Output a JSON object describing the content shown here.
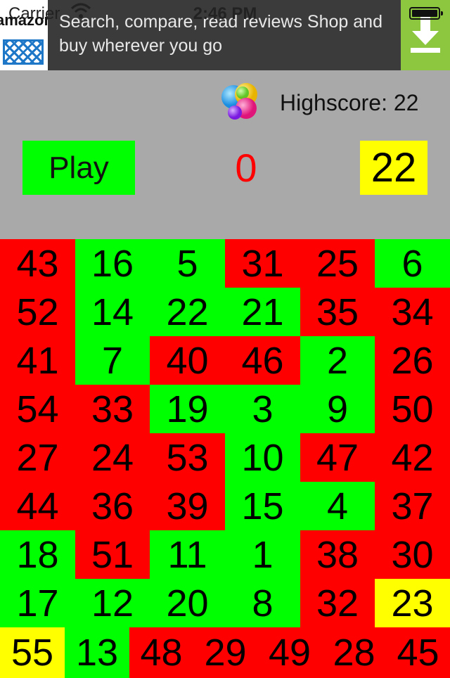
{
  "status_bar": {
    "carrier": "Carrier",
    "time": "2:46 PM"
  },
  "ad": {
    "logo_text": "amazon",
    "text": "Search, compare, read reviews Shop and buy wherever you go",
    "download_icon": "download-arrow-icon"
  },
  "header": {
    "game_center_icon": "game-center-bubbles-icon",
    "highscore": "Highscore: 22",
    "play_label": "Play",
    "score": "0",
    "target": "22"
  },
  "grid": {
    "rows": [
      [
        {
          "v": "43",
          "c": "red"
        },
        {
          "v": "16",
          "c": "green"
        },
        {
          "v": "5",
          "c": "green"
        },
        {
          "v": "31",
          "c": "red"
        },
        {
          "v": "25",
          "c": "red"
        },
        {
          "v": "6",
          "c": "green"
        }
      ],
      [
        {
          "v": "52",
          "c": "red"
        },
        {
          "v": "14",
          "c": "green"
        },
        {
          "v": "22",
          "c": "green"
        },
        {
          "v": "21",
          "c": "green"
        },
        {
          "v": "35",
          "c": "red"
        },
        {
          "v": "34",
          "c": "red"
        }
      ],
      [
        {
          "v": "41",
          "c": "red"
        },
        {
          "v": "7",
          "c": "green"
        },
        {
          "v": "40",
          "c": "red"
        },
        {
          "v": "46",
          "c": "red"
        },
        {
          "v": "2",
          "c": "green"
        },
        {
          "v": "26",
          "c": "red"
        }
      ],
      [
        {
          "v": "54",
          "c": "red"
        },
        {
          "v": "33",
          "c": "red"
        },
        {
          "v": "19",
          "c": "green"
        },
        {
          "v": "3",
          "c": "green"
        },
        {
          "v": "9",
          "c": "green"
        },
        {
          "v": "50",
          "c": "red"
        }
      ],
      [
        {
          "v": "27",
          "c": "red"
        },
        {
          "v": "24",
          "c": "red"
        },
        {
          "v": "53",
          "c": "red"
        },
        {
          "v": "10",
          "c": "green"
        },
        {
          "v": "47",
          "c": "red"
        },
        {
          "v": "42",
          "c": "red"
        }
      ],
      [
        {
          "v": "44",
          "c": "red"
        },
        {
          "v": "36",
          "c": "red"
        },
        {
          "v": "39",
          "c": "red"
        },
        {
          "v": "15",
          "c": "green"
        },
        {
          "v": "4",
          "c": "green"
        },
        {
          "v": "37",
          "c": "red"
        }
      ],
      [
        {
          "v": "18",
          "c": "green"
        },
        {
          "v": "51",
          "c": "red"
        },
        {
          "v": "11",
          "c": "green"
        },
        {
          "v": "1",
          "c": "green"
        },
        {
          "v": "38",
          "c": "red"
        },
        {
          "v": "30",
          "c": "red"
        }
      ],
      [
        {
          "v": "17",
          "c": "green"
        },
        {
          "v": "12",
          "c": "green"
        },
        {
          "v": "20",
          "c": "green"
        },
        {
          "v": "8",
          "c": "green"
        },
        {
          "v": "32",
          "c": "red"
        },
        {
          "v": "23",
          "c": "yellow"
        }
      ],
      [
        {
          "v": "55",
          "c": "yellow"
        },
        {
          "v": "13",
          "c": "green"
        },
        {
          "v": "48",
          "c": "red"
        },
        {
          "v": "29",
          "c": "red"
        },
        {
          "v": "49",
          "c": "red"
        },
        {
          "v": "28",
          "c": "red"
        },
        {
          "v": "45",
          "c": "red"
        }
      ]
    ]
  },
  "colors": {
    "red": "#ff0000",
    "green": "#00ff00",
    "yellow": "#ffff00",
    "background": "#a9a9a9"
  }
}
